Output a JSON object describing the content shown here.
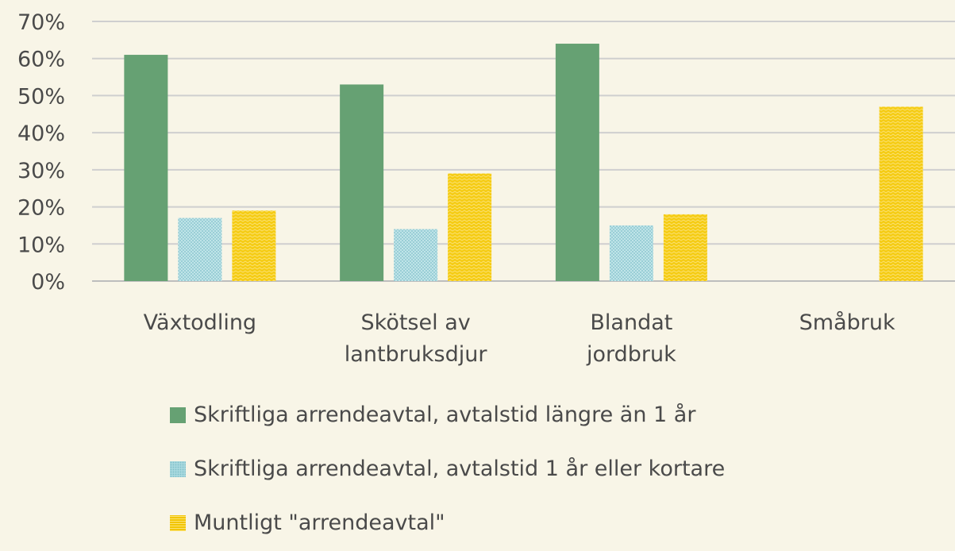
{
  "chart_data": {
    "type": "bar",
    "categories": [
      [
        "Växtodling"
      ],
      [
        "Skötsel av",
        "lantbruksdjur"
      ],
      [
        "Blandat",
        "jordbruk"
      ],
      [
        "Småbruk"
      ]
    ],
    "series": [
      {
        "name": "Skriftliga arrendeavtal, avtalstid längre än 1 år",
        "values": [
          61,
          53,
          64,
          null
        ],
        "color": "#66a173",
        "pattern": "solid"
      },
      {
        "name": "Skriftliga arrendeavtal, avtalstid 1 år eller kortare",
        "values": [
          17,
          14,
          15,
          null
        ],
        "color": "#a7d8de",
        "pattern": "dotted"
      },
      {
        "name": "Muntligt \"arrendeavtal\"",
        "values": [
          19,
          29,
          18,
          47
        ],
        "color": "#f2c500",
        "pattern": "hatched"
      }
    ],
    "yticks": [
      "0%",
      "10%",
      "20%",
      "30%",
      "40%",
      "50%",
      "60%",
      "70%"
    ],
    "ylim": [
      0,
      70
    ],
    "y_unit": "%",
    "grid": true,
    "legend_position": "bottom"
  }
}
